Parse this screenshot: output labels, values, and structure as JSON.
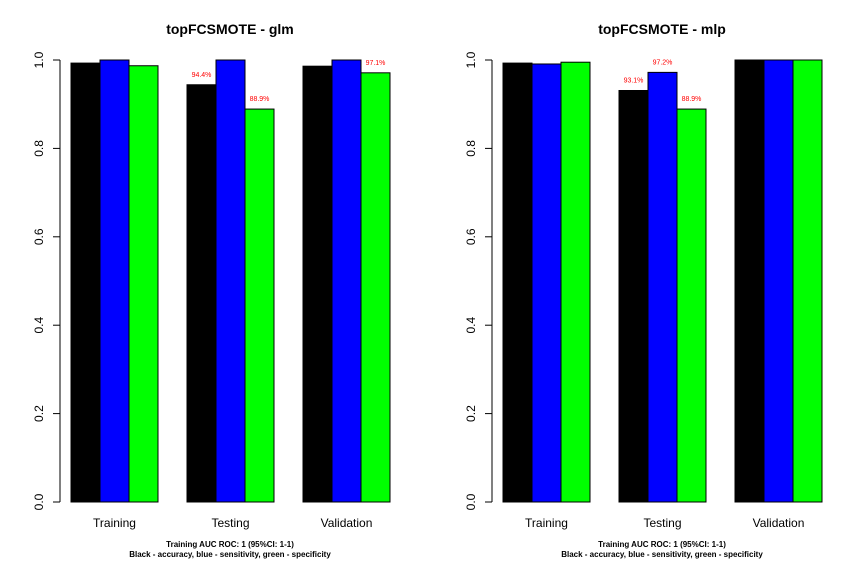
{
  "chart_data": [
    {
      "type": "bar",
      "title": "topFCSMOTE - glm",
      "categories": [
        "Training",
        "Testing",
        "Validation"
      ],
      "ylim": [
        0,
        1
      ],
      "yticks": [
        "0.0",
        "0.2",
        "0.4",
        "0.6",
        "0.8",
        "1.0"
      ],
      "series": [
        {
          "values": [
            0.993,
            0.944,
            0.986
          ],
          "color": "#000000"
        },
        {
          "values": [
            1.0,
            1.0,
            1.0
          ],
          "color": "#0000ff"
        },
        {
          "values": [
            0.987,
            0.889,
            0.971
          ],
          "color": "#00ff00"
        }
      ],
      "data_labels": [
        {
          "category": 1,
          "series": 0,
          "text": "94.4%"
        },
        {
          "category": 1,
          "series": 2,
          "text": "88.9%"
        },
        {
          "category": 2,
          "series": 2,
          "text": "97.1%"
        }
      ],
      "notes": [
        "Training AUC ROC: 1 (95%CI: 1-1)",
        "Black - accuracy, blue - sensitivity, green - specificity"
      ],
      "label_color": "#ff0000"
    },
    {
      "type": "bar",
      "title": "topFCSMOTE - mlp",
      "categories": [
        "Training",
        "Testing",
        "Validation"
      ],
      "ylim": [
        0,
        1
      ],
      "yticks": [
        "0.0",
        "0.2",
        "0.4",
        "0.6",
        "0.8",
        "1.0"
      ],
      "series": [
        {
          "values": [
            0.993,
            0.931,
            1.0
          ],
          "color": "#000000"
        },
        {
          "values": [
            0.991,
            0.972,
            1.0
          ],
          "color": "#0000ff"
        },
        {
          "values": [
            0.995,
            0.889,
            1.0
          ],
          "color": "#00ff00"
        }
      ],
      "data_labels": [
        {
          "category": 1,
          "series": 0,
          "text": "93.1%"
        },
        {
          "category": 1,
          "series": 1,
          "text": "97.2%"
        },
        {
          "category": 1,
          "series": 2,
          "text": "88.9%"
        }
      ],
      "notes": [
        "Training AUC ROC: 1 (95%CI: 1-1)",
        "Black - accuracy, blue - sensitivity, green - specificity"
      ],
      "label_color": "#ff0000"
    }
  ]
}
